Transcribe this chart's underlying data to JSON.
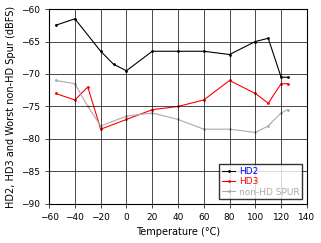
{
  "hd2_temp": [
    -55,
    -40,
    -20,
    -10,
    0,
    20,
    40,
    60,
    80,
    100,
    110,
    120,
    125
  ],
  "hd2_vals": [
    -62.5,
    -61.5,
    -66.5,
    -68.5,
    -69.5,
    -66.5,
    -66.5,
    -66.5,
    -67,
    -65,
    -64.5,
    -70.5,
    -70.5
  ],
  "hd3_temp": [
    -55,
    -40,
    -30,
    -20,
    0,
    20,
    40,
    60,
    80,
    100,
    110,
    120,
    125
  ],
  "hd3_vals": [
    -73,
    -74,
    -72,
    -78.5,
    -77,
    -75.5,
    -75,
    -74,
    -71,
    -73,
    -74.5,
    -71.5,
    -71.5
  ],
  "spur_temp": [
    -55,
    -40,
    -30,
    -20,
    0,
    20,
    40,
    60,
    80,
    100,
    110,
    120,
    125
  ],
  "spur_vals": [
    -71,
    -71.5,
    -75,
    -78,
    -76.5,
    -76,
    -77,
    -78.5,
    -78.5,
    -79,
    -78,
    -76,
    -75.5
  ],
  "hd2_color": "#000000",
  "hd3_color": "#ff0000",
  "spur_color": "#aaaaaa",
  "xlabel": "Temperature (°C)",
  "ylabel": "HD2, HD3 and Worst non-HD Spur (dBFS)",
  "xlim": [
    -60,
    140
  ],
  "ylim": [
    -90,
    -60
  ],
  "xticks": [
    -60,
    -40,
    -20,
    0,
    20,
    40,
    60,
    80,
    100,
    120,
    140
  ],
  "yticks": [
    -90,
    -85,
    -80,
    -75,
    -70,
    -65,
    -60
  ],
  "legend_labels": [
    "HD2",
    "HD3",
    "non-HD SPUR"
  ],
  "legend_label_colors": [
    "#0000ff",
    "#ff0000",
    "#aaaaaa"
  ],
  "axis_fontsize": 7,
  "tick_fontsize": 6.5,
  "legend_fontsize": 6.5
}
